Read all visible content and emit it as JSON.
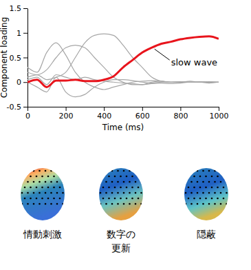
{
  "chart_data": {
    "type": "line",
    "x": [
      0,
      50,
      100,
      150,
      200,
      250,
      300,
      350,
      400,
      450,
      500,
      550,
      600,
      650,
      700,
      750,
      800,
      850,
      900,
      950,
      1000
    ],
    "series": [
      {
        "color": "#a6a6a6",
        "values": [
          0.1,
          0.15,
          0.05,
          0.1,
          0.2,
          0.5,
          0.8,
          0.95,
          0.98,
          0.95,
          0.75,
          0.5,
          0.3,
          0.1,
          0.02,
          0,
          0,
          0.02,
          0,
          0.01,
          0
        ]
      },
      {
        "color": "#a6a6a6",
        "values": [
          0.2,
          0.15,
          0.25,
          0.5,
          0.7,
          0.75,
          0.7,
          0.5,
          0.3,
          0.1,
          0,
          -0.05,
          -0.05,
          0,
          0.02,
          0,
          0,
          0,
          0.01,
          0,
          0
        ]
      },
      {
        "color": "#a6a6a6",
        "values": [
          0.3,
          0.2,
          0.6,
          0.8,
          0.55,
          0.2,
          0,
          -0.1,
          -0.15,
          -0.1,
          -0.05,
          0,
          0.02,
          0.03,
          0.02,
          0,
          0,
          0,
          0,
          0,
          0
        ]
      },
      {
        "color": "#a6a6a6",
        "values": [
          0,
          -0.1,
          -0.2,
          0.1,
          -0.2,
          -0.3,
          -0.25,
          -0.1,
          0,
          0.05,
          0.05,
          0.03,
          0,
          -0.02,
          0,
          0,
          0.01,
          0,
          0,
          0,
          0
        ]
      },
      {
        "color": "#a6a6a6",
        "values": [
          0.05,
          0.1,
          -0.05,
          0.15,
          0.1,
          0.05,
          0.1,
          0.05,
          0.02,
          0,
          -0.02,
          -0.03,
          -0.05,
          -0.03,
          -0.02,
          -0.03,
          -0.02,
          0,
          0,
          -0.02,
          0
        ]
      },
      {
        "name": "slow wave",
        "color": "#e8141c",
        "values": [
          0,
          0.05,
          -0.1,
          0.03,
          0.03,
          0.05,
          0.02,
          0.02,
          0.05,
          0.12,
          0.3,
          0.45,
          0.6,
          0.7,
          0.78,
          0.82,
          0.87,
          0.9,
          0.92,
          0.93,
          0.88
        ]
      }
    ],
    "xlim": [
      0,
      1000
    ],
    "ylim": [
      -0.5,
      1.5
    ],
    "xticks": [
      0,
      200,
      400,
      600,
      800,
      1000
    ],
    "yticks": [
      -0.5,
      0,
      0.5,
      1,
      1.5
    ],
    "x_label": "Time (ms)",
    "y_label": "Component loading"
  },
  "topographies": {
    "labels": [
      "情動刺激",
      "数字の\n更新",
      "隠蔽"
    ]
  }
}
